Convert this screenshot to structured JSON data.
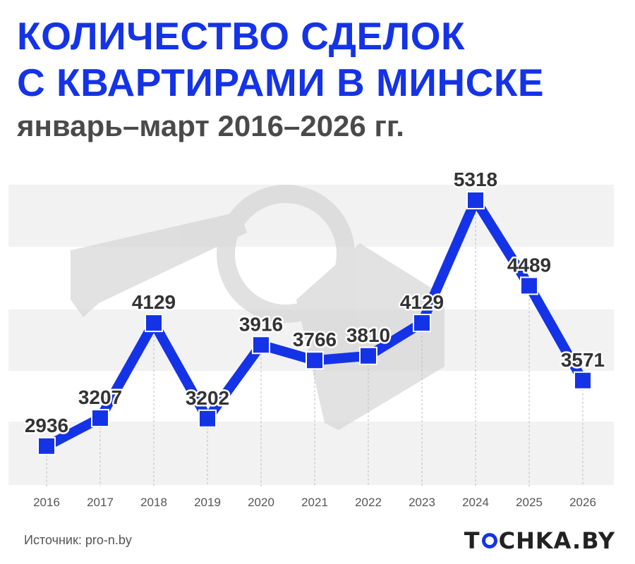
{
  "title_lines": [
    "КОЛИЧЕСТВО СДЕЛОК",
    "С КВАРТИРАМИ В МИНСКЕ"
  ],
  "subtitle": "январь–март 2016–2026 гг.",
  "source": "Источник: pro-n.by",
  "brand": {
    "prefix": "T",
    "suffix": "CHKA.BY"
  },
  "colors": {
    "accent": "#1533e6",
    "band": "#f2f2f2",
    "watermark": "#d5d5d5",
    "label": "#333333"
  },
  "chart_data": {
    "type": "line",
    "x": [
      "2016",
      "2017",
      "2018",
      "2019",
      "2020",
      "2021",
      "2022",
      "2023",
      "2024",
      "2025",
      "2026"
    ],
    "values": [
      2936,
      3207,
      4129,
      3202,
      3916,
      3766,
      3810,
      4129,
      5318,
      4489,
      3571
    ],
    "data_labels": [
      "2936",
      "3207",
      "4129",
      "3202",
      "3916",
      "3766",
      "3810",
      "4129",
      "5318",
      "4489",
      "3571"
    ],
    "ylim": [
      2750,
      5550
    ],
    "grid": false,
    "marker": "square",
    "watermark": "key-house-icon"
  }
}
